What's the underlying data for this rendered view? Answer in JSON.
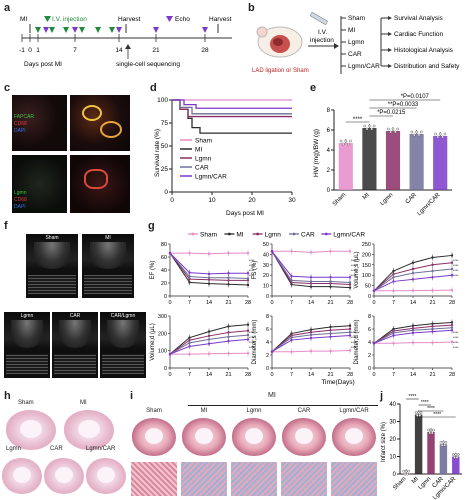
{
  "panels": {
    "a": "a",
    "b": "b",
    "c": "c",
    "d": "d",
    "e": "e",
    "f": "f",
    "g": "g",
    "h": "h",
    "i": "i",
    "j": "j"
  },
  "timeline": {
    "mi": "MI",
    "iv": "I.V. injection",
    "harvest1": "Harvest",
    "echo": "Echo",
    "harvest2": "Harvest",
    "ticks": [
      "-1",
      "0",
      "1",
      "7",
      "14",
      "21",
      "28"
    ],
    "days_post": "Days post MI",
    "scseq": "single-cell sequencing"
  },
  "workflow": {
    "iv": "I.V.",
    "injection": "injection",
    "lad": "LAD ligation or Sham",
    "groups": [
      "Sham",
      "MI",
      "Lgmn",
      "CAR",
      "Lgmn/CAR"
    ],
    "outcomes": [
      "Survival Analysis",
      "Cardiac Function",
      "Histological Analysis",
      "Distribution and Safety"
    ]
  },
  "staining": {
    "top": [
      "FAPCAR",
      "CD68",
      "DAPI"
    ],
    "bottom": [
      "Lgmn",
      "CD68",
      "DAPI"
    ],
    "colors": {
      "fap": "#39c33a",
      "cd68": "#e23b3b",
      "dapi": "#3a6ee8"
    }
  },
  "colors": {
    "sham": "#e48bc7",
    "mi": "#2b2b2b",
    "lgmn": "#8a2f66",
    "car": "#6f6f9a",
    "lgmncar": "#7b39c9",
    "accent": "#1e8a3c",
    "echo": "#7b39c9"
  },
  "chart_data": [
    {
      "id": "d",
      "type": "line",
      "ylabel": "Survival rate (%)",
      "xlabel": "Days post MI",
      "xlim": [
        0,
        30
      ],
      "ylim": [
        0,
        100
      ],
      "xticks": [
        0,
        10,
        20,
        30
      ],
      "yticks": [
        0,
        25,
        50,
        75,
        100
      ],
      "series": [
        {
          "name": "Sham",
          "x": [
            0,
            30
          ],
          "y": [
            100,
            100
          ]
        },
        {
          "name": "MI",
          "x": [
            0,
            2,
            2,
            4,
            4,
            5,
            5,
            7,
            7,
            30
          ],
          "y": [
            100,
            100,
            90,
            90,
            80,
            80,
            70,
            70,
            64,
            64
          ]
        },
        {
          "name": "Lgmn",
          "x": [
            0,
            2,
            2,
            4,
            4,
            30
          ],
          "y": [
            100,
            100,
            90,
            90,
            82,
            82
          ]
        },
        {
          "name": "CAR",
          "x": [
            0,
            2,
            2,
            5,
            5,
            30
          ],
          "y": [
            100,
            100,
            92,
            92,
            85,
            85
          ]
        },
        {
          "name": "Lgmn/CAR",
          "x": [
            0,
            3,
            3,
            6,
            6,
            30
          ],
          "y": [
            100,
            100,
            95,
            95,
            91,
            91
          ]
        }
      ]
    },
    {
      "id": "e",
      "type": "bar",
      "ylabel": "HW (mg)/BW (g)",
      "categories": [
        "Sham",
        "MI",
        "Lgmn",
        "CAR",
        "Lgmn/CAR"
      ],
      "values": [
        4.7,
        6.2,
        5.9,
        5.6,
        5.4
      ],
      "ylim": [
        0,
        8
      ],
      "yticks": [
        0,
        2,
        4,
        6,
        8
      ],
      "annotations": [
        "*P=0.0107",
        "**P=0.0033",
        "*P=0.0215",
        "****"
      ]
    },
    {
      "id": "g",
      "type": "line",
      "legend": [
        "Sham",
        "MI",
        "Lgmn",
        "CAR",
        "Lgmn/CAR"
      ],
      "x": [
        0,
        7,
        14,
        21,
        28
      ],
      "xlabel": "Time(Days)",
      "subplots": [
        {
          "ylabel": "EF (%)",
          "ylim": [
            0,
            80
          ],
          "yticks": [
            0,
            20,
            40,
            60,
            80
          ],
          "series": [
            [
              66,
              66,
              65,
              66,
              66
            ],
            [
              66,
              21,
              19,
              18,
              17
            ],
            [
              66,
              26,
              25,
              24,
              24
            ],
            [
              66,
              30,
              28,
              28,
              27
            ],
            [
              66,
              36,
              34,
              35,
              35
            ]
          ]
        },
        {
          "ylabel": "FS (%)",
          "ylim": [
            0,
            50
          ],
          "yticks": [
            0,
            10,
            20,
            30,
            40,
            50
          ],
          "series": [
            [
              43,
              43,
              42,
              43,
              43
            ],
            [
              43,
              11,
              9,
              9,
              8
            ],
            [
              43,
              13,
              12,
              12,
              11
            ],
            [
              43,
              15,
              14,
              14,
              13
            ],
            [
              43,
              19,
              18,
              18,
              18
            ]
          ]
        },
        {
          "ylabel": "Volume;s (μL)",
          "ylim": [
            0,
            250
          ],
          "yticks": [
            0,
            50,
            100,
            150,
            200,
            250
          ],
          "series": [
            [
              25,
              25,
              26,
              27,
              28
            ],
            [
              25,
              120,
              160,
              185,
              195
            ],
            [
              25,
              105,
              130,
              150,
              160
            ],
            [
              25,
              90,
              110,
              120,
              130
            ],
            [
              25,
              70,
              80,
              90,
              100
            ]
          ]
        },
        {
          "ylabel": "Volume;d (μL)",
          "ylim": [
            0,
            300
          ],
          "yticks": [
            0,
            100,
            200,
            300
          ],
          "series": [
            [
              80,
              80,
              82,
              84,
              85
            ],
            [
              80,
              175,
              210,
              240,
              250
            ],
            [
              80,
              160,
              185,
              205,
              215
            ],
            [
              80,
              145,
              165,
              180,
              190
            ],
            [
              80,
              125,
              140,
              155,
              165
            ]
          ]
        },
        {
          "ylabel": "Diameter;s (mm)",
          "ylim": [
            0,
            8
          ],
          "yticks": [
            0,
            2,
            4,
            6,
            8
          ],
          "series": [
            [
              2.5,
              2.5,
              2.6,
              2.6,
              2.7
            ],
            [
              2.5,
              5.3,
              5.9,
              6.3,
              6.5
            ],
            [
              2.5,
              5.0,
              5.5,
              5.8,
              6.0
            ],
            [
              2.5,
              4.7,
              5.1,
              5.3,
              5.5
            ],
            [
              2.5,
              4.3,
              4.6,
              4.8,
              5.0
            ]
          ]
        },
        {
          "ylabel": "Diameter;d (mm)",
          "ylim": [
            0,
            8
          ],
          "yticks": [
            0,
            2,
            4,
            6,
            8
          ],
          "series": [
            [
              3.8,
              3.8,
              3.9,
              3.9,
              4.0
            ],
            [
              3.8,
              6.0,
              6.5,
              6.8,
              7.0
            ],
            [
              3.8,
              5.7,
              6.1,
              6.4,
              6.6
            ],
            [
              3.8,
              5.4,
              5.8,
              6.0,
              6.2
            ],
            [
              3.8,
              5.0,
              5.4,
              5.6,
              5.8
            ]
          ]
        }
      ]
    },
    {
      "id": "j",
      "type": "bar",
      "ylabel": "Infarct size (%)",
      "categories": [
        "Sham",
        "MI",
        "Lgmn",
        "CAR",
        "Lgmn/CAR"
      ],
      "values": [
        0.5,
        34,
        24,
        17,
        10
      ],
      "ylim": [
        0,
        40
      ],
      "yticks": [
        0,
        10,
        20,
        30,
        40
      ],
      "annotations": [
        "****",
        "****",
        "****",
        "****"
      ]
    }
  ],
  "echo_labels": [
    "Sham",
    "MI",
    "Lgmn",
    "CAR",
    "CAR/Lgmn"
  ],
  "histo_h": [
    "Sham",
    "MI",
    "Lgmn",
    "CAR",
    "Lgmn/CAR"
  ],
  "histo_i": {
    "group": "MI",
    "labels": [
      "Sham",
      "MI",
      "Lgmn",
      "CAR",
      "Lgmn/CAR"
    ]
  }
}
